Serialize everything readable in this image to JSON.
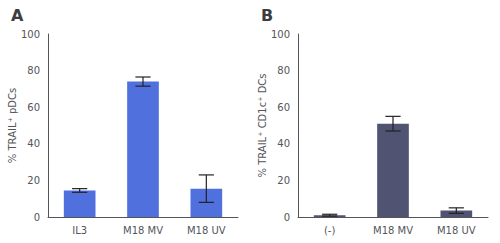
{
  "chart_data": [
    {
      "type": "bar",
      "title": "A",
      "categories": [
        "IL3",
        "M18 MV",
        "M18 UV"
      ],
      "values": [
        14.5,
        74.0,
        15.5
      ],
      "errors": [
        1.0,
        2.5,
        7.5
      ],
      "ylabel": "% TRAIL⁺ pDCs",
      "ylim": [
        0,
        100
      ],
      "yticks": [
        0,
        20,
        40,
        60,
        80,
        100
      ],
      "grid": false
    },
    {
      "type": "bar",
      "title": "B",
      "categories": [
        "(-)",
        "M18 MV",
        "M18 UV"
      ],
      "values": [
        1.0,
        51.0,
        3.5
      ],
      "errors": [
        0.5,
        4.0,
        1.5
      ],
      "ylabel": "% TRAIL⁺ CD1c⁺ DCs",
      "ylim": [
        0,
        100
      ],
      "yticks": [
        0,
        20,
        40,
        60,
        80,
        100
      ],
      "grid": false
    }
  ]
}
